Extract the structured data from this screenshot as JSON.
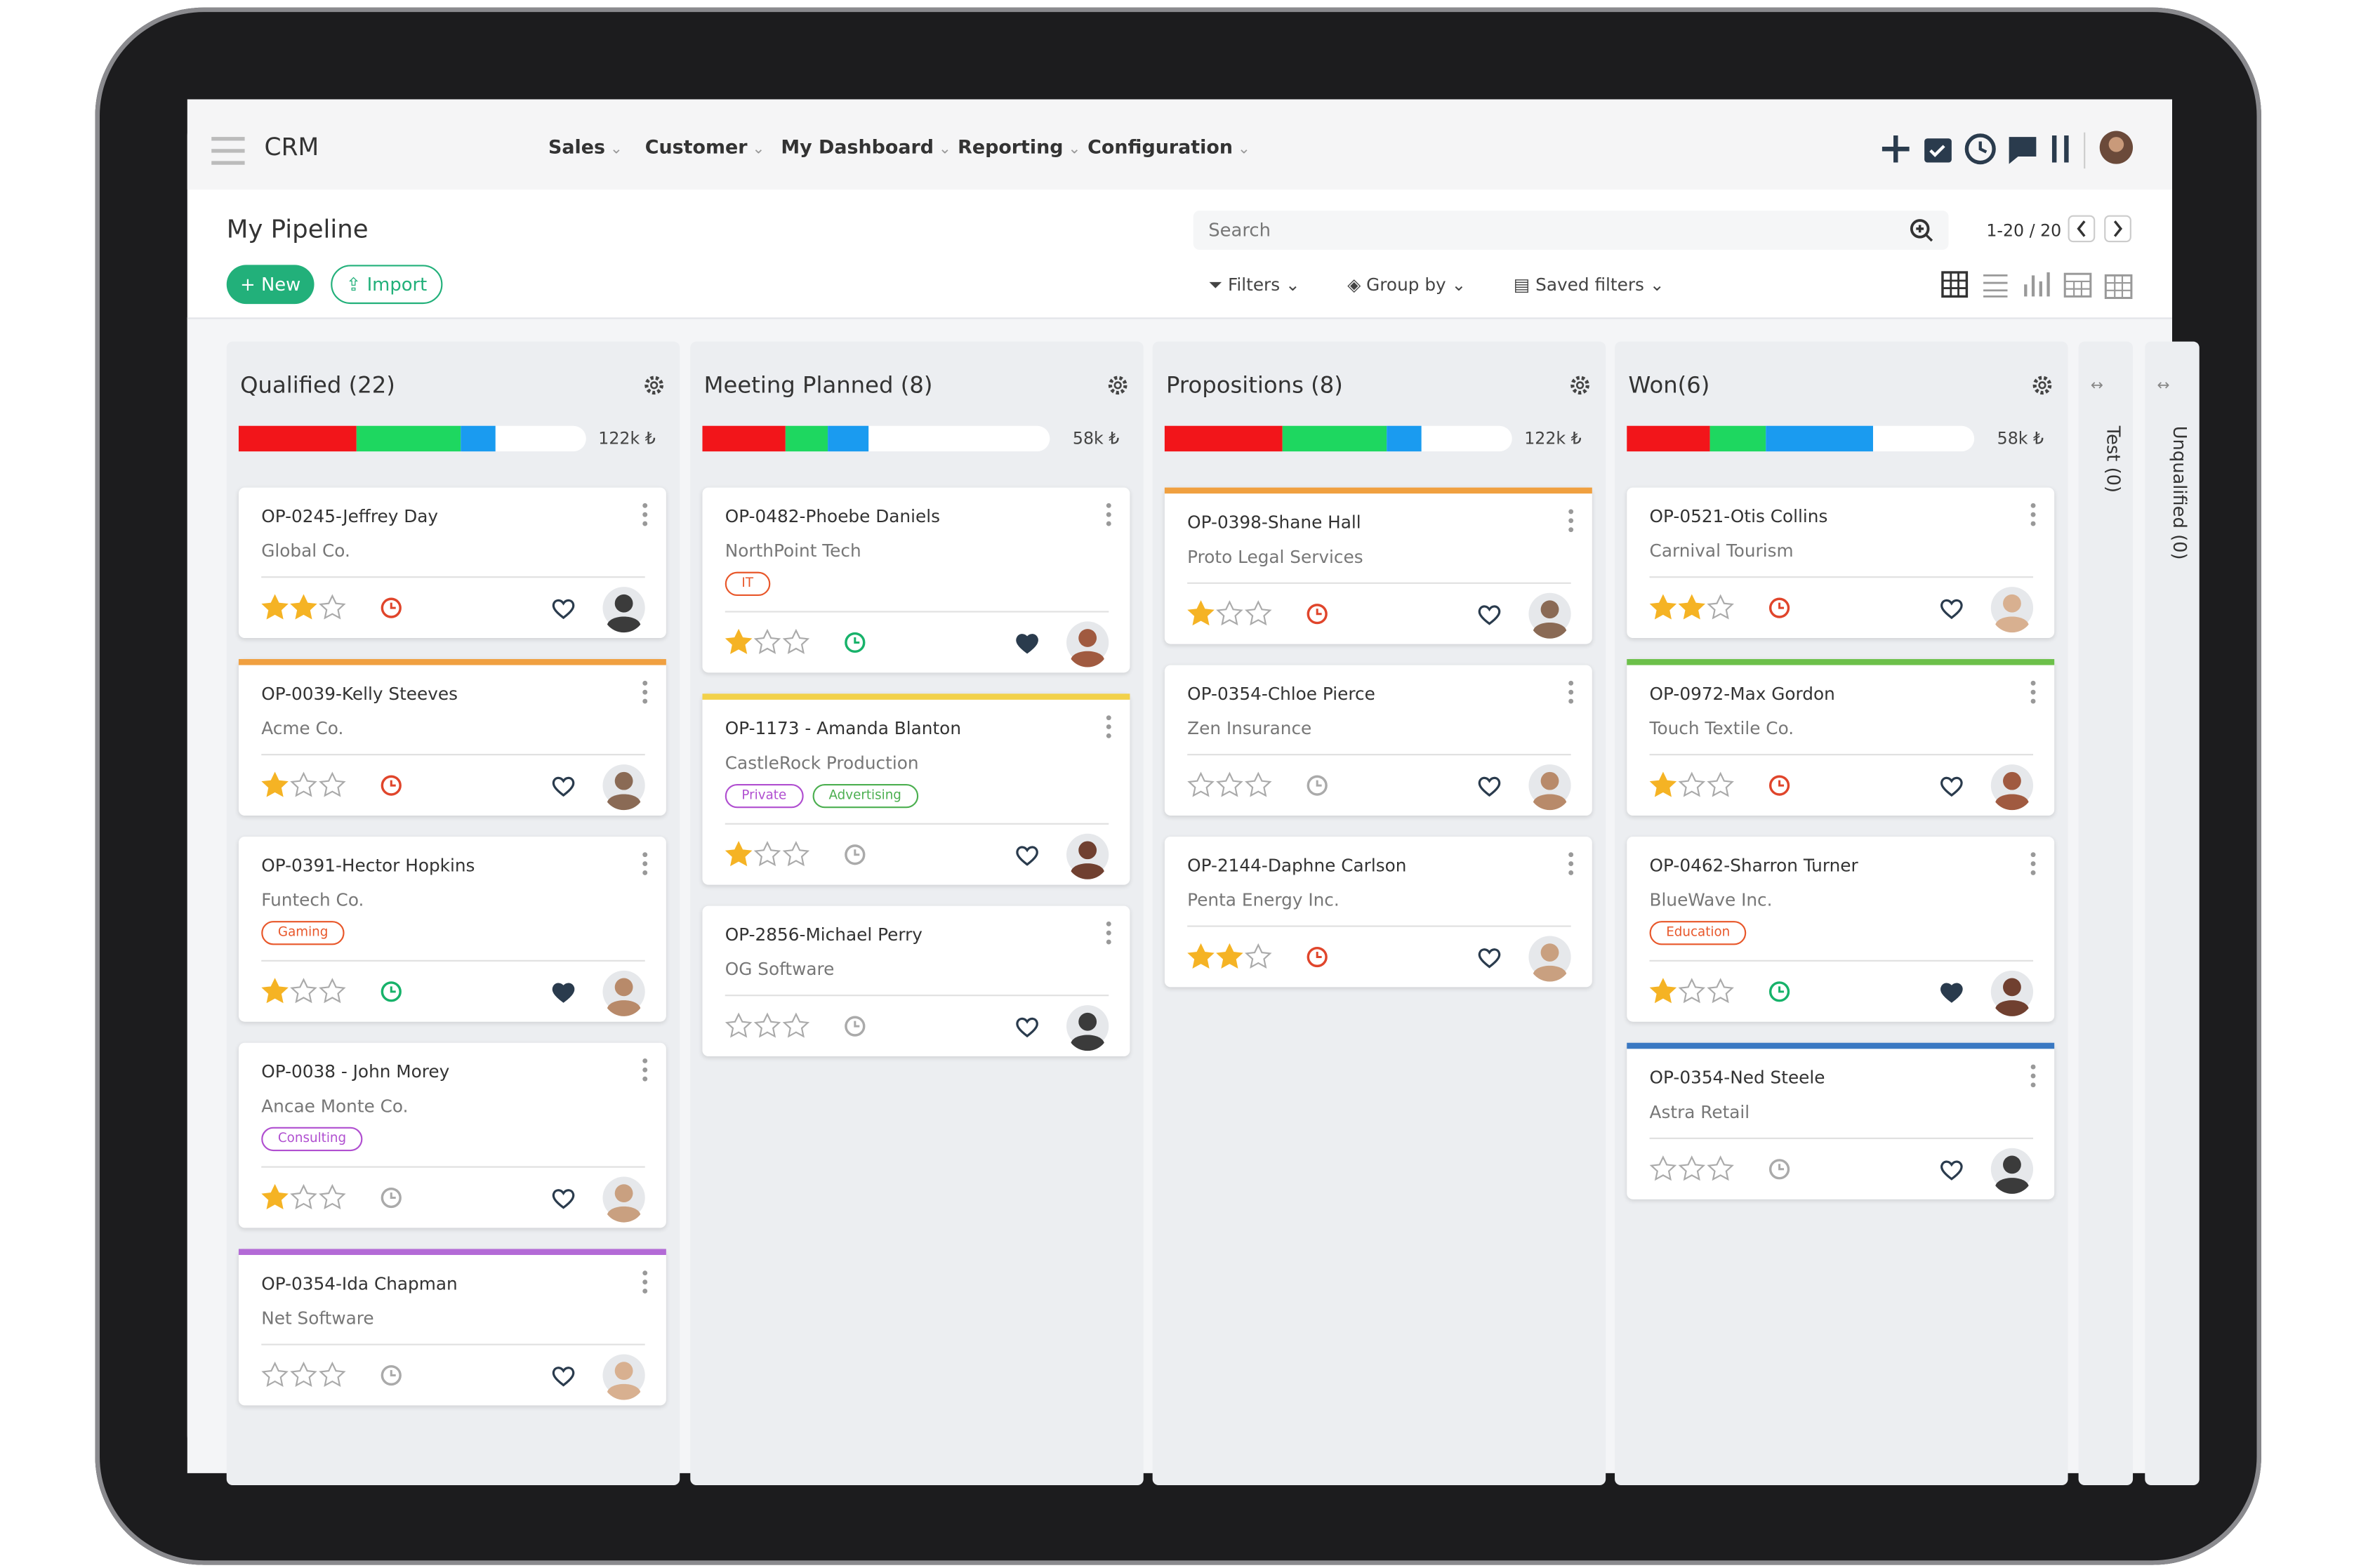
{
  "nav": {
    "app": "CRM",
    "menu": [
      "Sales",
      "Customer",
      "My Dashboard",
      "Reporting",
      "Configuration"
    ]
  },
  "header": {
    "title": "My Pipeline",
    "new": "New",
    "import": "Import",
    "search": "Search",
    "pager": "1-20 / 20",
    "filters": "Filters",
    "group_by": "Group by",
    "saved_filters": "Saved filters"
  },
  "columns": [
    {
      "title": "Qualified (22)",
      "total": "122k ₺",
      "progress": [
        {
          "color": "#f2151a",
          "value": 34
        },
        {
          "color": "#1ed760",
          "value": 30
        },
        {
          "color": "#1a9bf0",
          "value": 10
        }
      ],
      "cards": [
        {
          "title": "OP-0245-Jeffrey Day",
          "company": "Global Co.",
          "rating": 2,
          "clock": "#e0452b",
          "liked": false
        },
        {
          "title": "OP-0039-Kelly Steeves",
          "company": "Acme Co.",
          "accent": "#f0a040",
          "rating": 1,
          "clock": "#e0452b",
          "liked": false
        },
        {
          "title": "OP-0391-Hector Hopkins",
          "company": "Funtech Co.",
          "tags": [
            {
              "label": "Gaming",
              "color": "#e8572a"
            }
          ],
          "rating": 1,
          "clock": "#17b26a",
          "liked": true
        },
        {
          "title": "OP-0038 - John Morey",
          "company": "Ancae Monte Co.",
          "tags": [
            {
              "label": "Consulting",
              "color": "#b04fd0"
            }
          ],
          "rating": 1,
          "clock": "#aaaaaa",
          "liked": false
        },
        {
          "title": "OP-0354-Ida Chapman",
          "company": "Net Software",
          "accent": "#b36ad6",
          "rating": 0,
          "clock": "#aaaaaa",
          "liked": false
        }
      ]
    },
    {
      "title": "Meeting Planned (8)",
      "total": "58k ₺",
      "progress": [
        {
          "color": "#f2151a",
          "value": 24
        },
        {
          "color": "#1ed760",
          "value": 12
        },
        {
          "color": "#1a9bf0",
          "value": 12
        }
      ],
      "cards": [
        {
          "title": "OP-0482-Phoebe Daniels",
          "company": "NorthPoint Tech",
          "tags": [
            {
              "label": "IT",
              "color": "#e8572a"
            }
          ],
          "rating": 1,
          "clock": "#17b26a",
          "liked": true
        },
        {
          "title": "OP-1173 - Amanda Blanton",
          "company": "CastleRock Production",
          "accent": "#f2d14a",
          "tags": [
            {
              "label": "Private",
              "color": "#b04fd0"
            },
            {
              "label": "Advertising",
              "color": "#4caf50"
            }
          ],
          "rating": 1,
          "clock": "#aaaaaa",
          "liked": false
        },
        {
          "title": "OP-2856-Michael Perry",
          "company": "OG Software",
          "rating": 0,
          "clock": "#aaaaaa",
          "liked": false
        }
      ]
    },
    {
      "title": "Propositions (8)",
      "total": "122k ₺",
      "progress": [
        {
          "color": "#f2151a",
          "value": 34
        },
        {
          "color": "#1ed760",
          "value": 30
        },
        {
          "color": "#1a9bf0",
          "value": 10
        }
      ],
      "cards": [
        {
          "title": "OP-0398-Shane Hall",
          "company": "Proto Legal Services",
          "accent": "#f0a040",
          "rating": 1,
          "clock": "#e0452b",
          "liked": false
        },
        {
          "title": "OP-0354-Chloe Pierce",
          "company": "Zen Insurance",
          "rating": 0,
          "clock": "#aaaaaa",
          "liked": false
        },
        {
          "title": "OP-2144-Daphne Carlson",
          "company": "Penta Energy Inc.",
          "rating": 2,
          "clock": "#e0452b",
          "liked": false
        }
      ]
    },
    {
      "title": "Won(6)",
      "total": "58k ₺",
      "progress": [
        {
          "color": "#f2151a",
          "value": 24
        },
        {
          "color": "#1ed760",
          "value": 16
        },
        {
          "color": "#1a9bf0",
          "value": 31
        }
      ],
      "cards": [
        {
          "title": "OP-0521-Otis Collins",
          "company": "Carnival Tourism",
          "rating": 2,
          "clock": "#e0452b",
          "liked": false
        },
        {
          "title": "OP-0972-Max Gordon",
          "company": "Touch Textile Co.",
          "accent": "#6cc04a",
          "rating": 1,
          "clock": "#e0452b",
          "liked": false
        },
        {
          "title": "OP-0462-Sharron Turner",
          "company": "BlueWave Inc.",
          "tags": [
            {
              "label": "Education",
              "color": "#e8572a"
            }
          ],
          "rating": 1,
          "clock": "#17b26a",
          "liked": true
        },
        {
          "title": "OP-0354-Ned Steele",
          "company": "Astra Retail",
          "accent": "#3a78c2",
          "rating": 0,
          "clock": "#aaaaaa",
          "liked": false
        }
      ]
    }
  ],
  "collapsed": [
    "Test (0)",
    "Unqualified (0)"
  ]
}
